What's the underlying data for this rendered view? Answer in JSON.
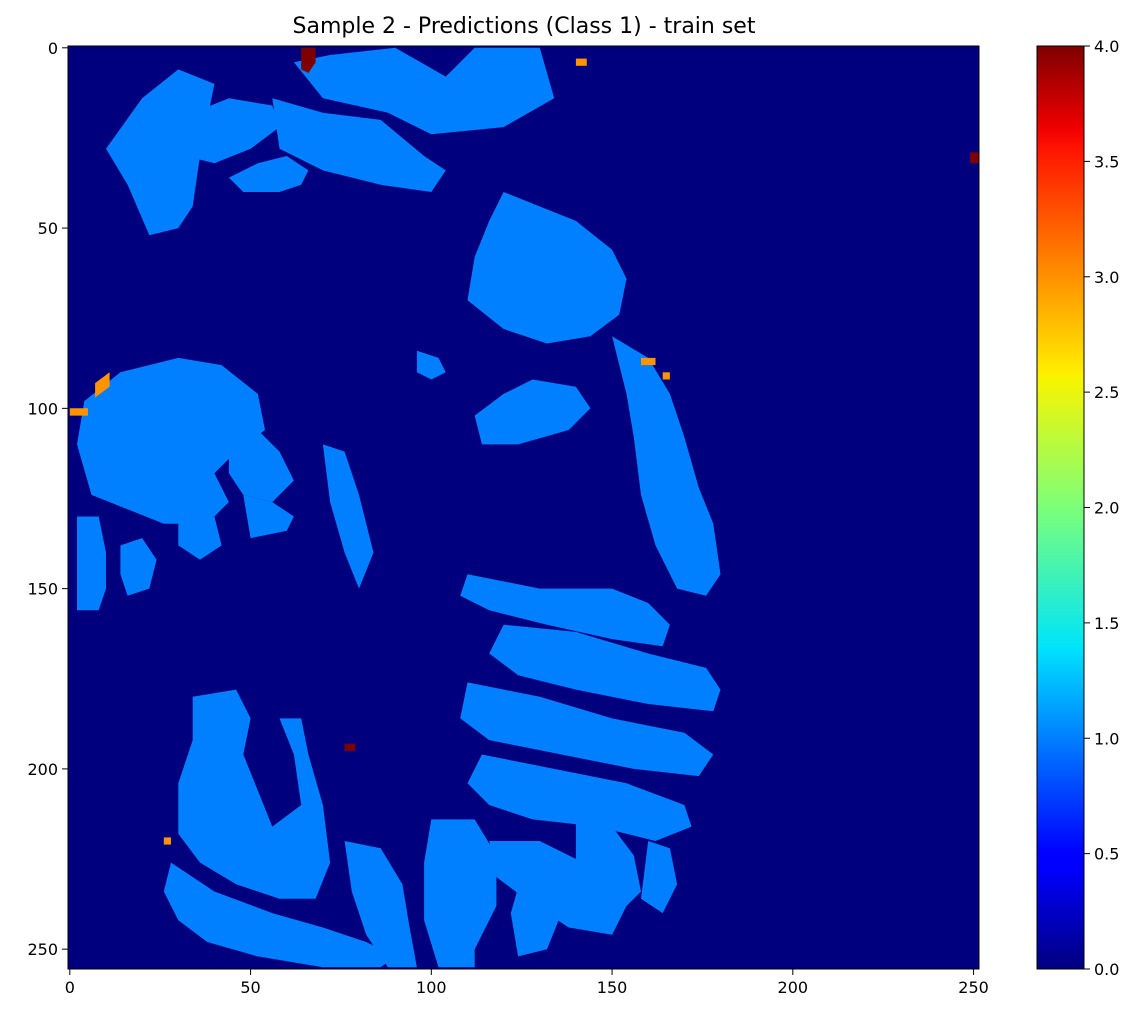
{
  "chart_data": {
    "type": "heatmap",
    "title": "Sample 2 - Predictions (Class 1) - train set",
    "xlabel": "",
    "ylabel": "",
    "colormap": "jet",
    "grid": false,
    "image_shape": [
      256,
      252
    ],
    "xlim": [
      -0.5,
      251.5
    ],
    "ylim": [
      255.5,
      -0.5
    ],
    "x_ticks": [
      0,
      50,
      100,
      150,
      200,
      250
    ],
    "y_ticks": [
      0,
      50,
      100,
      150,
      200,
      250
    ],
    "colorbar": {
      "range": [
        0.0,
        4.0
      ],
      "ticks": [
        "0.0",
        "0.5",
        "1.0",
        "1.5",
        "2.0",
        "2.5",
        "3.0",
        "3.5",
        "4.0"
      ]
    },
    "value_colors": {
      "0": "#00007f",
      "1": "#0080ff",
      "3": "#ff9400",
      "4": "#7f0000"
    },
    "regions": [
      {
        "value": 1,
        "polygon": [
          [
            10,
            28
          ],
          [
            16,
            38
          ],
          [
            22,
            52
          ],
          [
            30,
            50
          ],
          [
            34,
            44
          ],
          [
            36,
            30
          ],
          [
            40,
            10
          ],
          [
            30,
            6
          ],
          [
            20,
            14
          ]
        ]
      },
      {
        "value": 1,
        "polygon": [
          [
            26,
            24
          ],
          [
            32,
            30
          ],
          [
            40,
            32
          ],
          [
            50,
            28
          ],
          [
            58,
            22
          ],
          [
            56,
            16
          ],
          [
            44,
            14
          ],
          [
            34,
            18
          ]
        ]
      },
      {
        "value": 1,
        "polygon": [
          [
            44,
            36
          ],
          [
            48,
            40
          ],
          [
            58,
            40
          ],
          [
            64,
            38
          ],
          [
            66,
            34
          ],
          [
            60,
            30
          ],
          [
            52,
            32
          ]
        ]
      },
      {
        "value": 1,
        "polygon": [
          [
            62,
            4
          ],
          [
            72,
            2
          ],
          [
            90,
            0
          ],
          [
            104,
            8
          ],
          [
            112,
            0
          ],
          [
            130,
            0
          ],
          [
            134,
            14
          ],
          [
            120,
            22
          ],
          [
            100,
            24
          ],
          [
            88,
            18
          ],
          [
            70,
            14
          ]
        ]
      },
      {
        "value": 1,
        "polygon": [
          [
            56,
            14
          ],
          [
            70,
            18
          ],
          [
            86,
            20
          ],
          [
            98,
            30
          ],
          [
            104,
            34
          ],
          [
            100,
            40
          ],
          [
            86,
            38
          ],
          [
            70,
            34
          ],
          [
            58,
            28
          ]
        ]
      },
      {
        "value": 1,
        "polygon": [
          [
            120,
            40
          ],
          [
            140,
            48
          ],
          [
            150,
            56
          ],
          [
            154,
            64
          ],
          [
            152,
            74
          ],
          [
            144,
            80
          ],
          [
            132,
            82
          ],
          [
            120,
            78
          ],
          [
            110,
            70
          ],
          [
            112,
            58
          ],
          [
            116,
            48
          ]
        ]
      },
      {
        "value": 1,
        "polygon": [
          [
            120,
            96
          ],
          [
            128,
            92
          ],
          [
            140,
            94
          ],
          [
            144,
            100
          ],
          [
            138,
            106
          ],
          [
            124,
            110
          ],
          [
            114,
            110
          ],
          [
            112,
            102
          ]
        ]
      },
      {
        "value": 1,
        "polygon": [
          [
            96,
            84
          ],
          [
            102,
            86
          ],
          [
            104,
            90
          ],
          [
            100,
            92
          ],
          [
            96,
            90
          ]
        ]
      },
      {
        "value": 1,
        "polygon": [
          [
            150,
            80
          ],
          [
            160,
            86
          ],
          [
            166,
            96
          ],
          [
            170,
            108
          ],
          [
            174,
            122
          ],
          [
            178,
            132
          ],
          [
            180,
            146
          ],
          [
            176,
            152
          ],
          [
            168,
            150
          ],
          [
            162,
            138
          ],
          [
            158,
            124
          ],
          [
            156,
            108
          ],
          [
            154,
            96
          ]
        ]
      },
      {
        "value": 1,
        "polygon": [
          [
            4,
            98
          ],
          [
            14,
            90
          ],
          [
            30,
            86
          ],
          [
            42,
            88
          ],
          [
            52,
            96
          ],
          [
            54,
            106
          ],
          [
            46,
            112
          ],
          [
            40,
            118
          ],
          [
            44,
            126
          ],
          [
            38,
            132
          ],
          [
            26,
            132
          ],
          [
            16,
            128
          ],
          [
            6,
            124
          ],
          [
            2,
            110
          ]
        ]
      },
      {
        "value": 1,
        "polygon": [
          [
            44,
            108
          ],
          [
            52,
            106
          ],
          [
            58,
            112
          ],
          [
            62,
            120
          ],
          [
            56,
            126
          ],
          [
            48,
            124
          ],
          [
            44,
            118
          ]
        ]
      },
      {
        "value": 1,
        "polygon": [
          [
            30,
            128
          ],
          [
            40,
            130
          ],
          [
            42,
            138
          ],
          [
            36,
            142
          ],
          [
            30,
            138
          ]
        ]
      },
      {
        "value": 1,
        "polygon": [
          [
            48,
            124
          ],
          [
            56,
            126
          ],
          [
            62,
            130
          ],
          [
            60,
            134
          ],
          [
            50,
            136
          ]
        ]
      },
      {
        "value": 1,
        "polygon": [
          [
            2,
            130
          ],
          [
            8,
            130
          ],
          [
            10,
            140
          ],
          [
            10,
            150
          ],
          [
            8,
            156
          ],
          [
            2,
            156
          ]
        ]
      },
      {
        "value": 1,
        "polygon": [
          [
            14,
            138
          ],
          [
            20,
            136
          ],
          [
            24,
            142
          ],
          [
            22,
            150
          ],
          [
            16,
            152
          ],
          [
            14,
            146
          ]
        ]
      },
      {
        "value": 1,
        "polygon": [
          [
            70,
            110
          ],
          [
            76,
            112
          ],
          [
            80,
            124
          ],
          [
            84,
            140
          ],
          [
            80,
            150
          ],
          [
            76,
            140
          ],
          [
            72,
            126
          ]
        ]
      },
      {
        "value": 1,
        "polygon": [
          [
            110,
            146
          ],
          [
            130,
            150
          ],
          [
            150,
            150
          ],
          [
            160,
            154
          ],
          [
            166,
            160
          ],
          [
            164,
            166
          ],
          [
            150,
            164
          ],
          [
            132,
            160
          ],
          [
            116,
            156
          ],
          [
            108,
            152
          ]
        ]
      },
      {
        "value": 1,
        "polygon": [
          [
            120,
            160
          ],
          [
            140,
            162
          ],
          [
            160,
            168
          ],
          [
            176,
            172
          ],
          [
            180,
            178
          ],
          [
            178,
            184
          ],
          [
            160,
            182
          ],
          [
            140,
            178
          ],
          [
            124,
            174
          ],
          [
            116,
            168
          ]
        ]
      },
      {
        "value": 1,
        "polygon": [
          [
            110,
            176
          ],
          [
            130,
            180
          ],
          [
            150,
            186
          ],
          [
            170,
            190
          ],
          [
            178,
            196
          ],
          [
            174,
            202
          ],
          [
            156,
            200
          ],
          [
            136,
            196
          ],
          [
            116,
            192
          ],
          [
            108,
            186
          ]
        ]
      },
      {
        "value": 1,
        "polygon": [
          [
            114,
            196
          ],
          [
            134,
            200
          ],
          [
            154,
            204
          ],
          [
            170,
            210
          ],
          [
            172,
            216
          ],
          [
            162,
            220
          ],
          [
            146,
            216
          ],
          [
            128,
            214
          ],
          [
            116,
            210
          ],
          [
            110,
            204
          ]
        ]
      },
      {
        "value": 1,
        "polygon": [
          [
            116,
            220
          ],
          [
            130,
            220
          ],
          [
            146,
            228
          ],
          [
            154,
            238
          ],
          [
            150,
            246
          ],
          [
            138,
            244
          ],
          [
            126,
            236
          ],
          [
            118,
            230
          ]
        ]
      },
      {
        "value": 1,
        "polygon": [
          [
            34,
            180
          ],
          [
            46,
            178
          ],
          [
            50,
            186
          ],
          [
            48,
            196
          ],
          [
            52,
            206
          ],
          [
            56,
            216
          ],
          [
            64,
            210
          ],
          [
            62,
            196
          ],
          [
            58,
            186
          ],
          [
            64,
            186
          ],
          [
            66,
            196
          ],
          [
            70,
            210
          ],
          [
            72,
            226
          ],
          [
            68,
            236
          ],
          [
            58,
            236
          ],
          [
            46,
            232
          ],
          [
            36,
            226
          ],
          [
            30,
            218
          ],
          [
            30,
            204
          ],
          [
            34,
            192
          ]
        ]
      },
      {
        "value": 1,
        "polygon": [
          [
            28,
            226
          ],
          [
            40,
            234
          ],
          [
            56,
            240
          ],
          [
            70,
            244
          ],
          [
            82,
            248
          ],
          [
            90,
            252
          ],
          [
            86,
            255
          ],
          [
            70,
            255
          ],
          [
            52,
            252
          ],
          [
            38,
            248
          ],
          [
            30,
            242
          ],
          [
            26,
            234
          ]
        ]
      },
      {
        "value": 1,
        "polygon": [
          [
            76,
            220
          ],
          [
            86,
            222
          ],
          [
            92,
            232
          ],
          [
            94,
            244
          ],
          [
            96,
            255
          ],
          [
            88,
            255
          ],
          [
            82,
            246
          ],
          [
            78,
            234
          ]
        ]
      },
      {
        "value": 1,
        "polygon": [
          [
            100,
            214
          ],
          [
            112,
            214
          ],
          [
            118,
            224
          ],
          [
            118,
            238
          ],
          [
            112,
            250
          ],
          [
            112,
            255
          ],
          [
            102,
            255
          ],
          [
            98,
            242
          ],
          [
            98,
            226
          ]
        ]
      },
      {
        "value": 1,
        "polygon": [
          [
            126,
            226
          ],
          [
            134,
            230
          ],
          [
            136,
            240
          ],
          [
            132,
            250
          ],
          [
            124,
            252
          ],
          [
            122,
            240
          ]
        ]
      },
      {
        "value": 1,
        "polygon": [
          [
            140,
            214
          ],
          [
            150,
            216
          ],
          [
            156,
            224
          ],
          [
            158,
            234
          ],
          [
            152,
            240
          ],
          [
            144,
            238
          ],
          [
            140,
            226
          ]
        ]
      },
      {
        "value": 1,
        "polygon": [
          [
            160,
            220
          ],
          [
            166,
            222
          ],
          [
            168,
            232
          ],
          [
            164,
            240
          ],
          [
            158,
            236
          ]
        ]
      },
      {
        "value": 4,
        "polygon": [
          [
            64,
            0
          ],
          [
            68,
            0
          ],
          [
            68,
            4
          ],
          [
            66,
            7
          ],
          [
            64,
            6
          ]
        ]
      },
      {
        "value": 4,
        "polygon": [
          [
            249,
            29
          ],
          [
            252,
            29
          ],
          [
            252,
            32
          ],
          [
            249,
            32
          ]
        ]
      },
      {
        "value": 4,
        "polygon": [
          [
            76,
            193
          ],
          [
            79,
            193
          ],
          [
            79,
            195
          ],
          [
            76,
            195
          ]
        ]
      },
      {
        "value": 3,
        "polygon": [
          [
            140,
            3
          ],
          [
            143,
            3
          ],
          [
            143,
            5
          ],
          [
            140,
            5
          ]
        ]
      },
      {
        "value": 3,
        "polygon": [
          [
            7,
            93
          ],
          [
            11,
            90
          ],
          [
            11,
            94
          ],
          [
            7,
            97
          ]
        ]
      },
      {
        "value": 3,
        "polygon": [
          [
            0,
            100
          ],
          [
            5,
            100
          ],
          [
            5,
            102
          ],
          [
            0,
            102
          ]
        ]
      },
      {
        "value": 3,
        "polygon": [
          [
            158,
            86
          ],
          [
            162,
            86
          ],
          [
            162,
            88
          ],
          [
            158,
            88
          ]
        ]
      },
      {
        "value": 3,
        "polygon": [
          [
            164,
            90
          ],
          [
            166,
            90
          ],
          [
            166,
            92
          ],
          [
            164,
            92
          ]
        ]
      },
      {
        "value": 3,
        "polygon": [
          [
            26,
            219
          ],
          [
            28,
            219
          ],
          [
            28,
            221
          ],
          [
            26,
            221
          ]
        ]
      }
    ]
  }
}
